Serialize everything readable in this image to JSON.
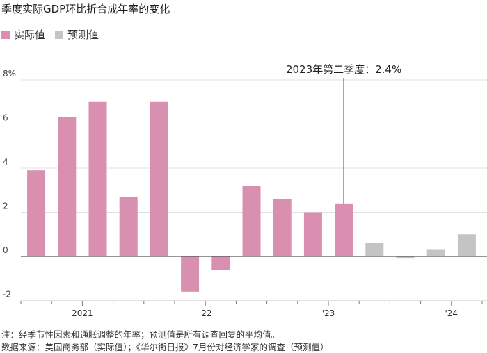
{
  "title": "季度实际GDP环比折合成年率的变化",
  "legend": [
    {
      "label": "实际值",
      "color": "#d98fb0"
    },
    {
      "label": "预测值",
      "color": "#c4c4c4"
    }
  ],
  "chart_data": {
    "type": "bar",
    "title": "季度实际GDP环比折合成年率的变化",
    "y_tick_labels": [
      "8%",
      "6",
      "4",
      "2",
      "0",
      "-2"
    ],
    "ylim": [
      -2.3,
      8.2
    ],
    "grid": true,
    "x_labels": [
      {
        "label": "2021",
        "at": 1.5
      },
      {
        "label": "'22",
        "at": 5.5
      },
      {
        "label": "'23",
        "at": 9.5
      },
      {
        "label": "'24",
        "at": 13.5
      }
    ],
    "series": [
      {
        "name": "实际值",
        "color": "#d98fb0",
        "values": [
          3.9,
          6.3,
          7.0,
          2.7,
          7.0,
          -1.6,
          -0.6,
          3.2,
          2.6,
          2.0,
          2.4,
          null,
          null,
          null,
          null
        ]
      },
      {
        "name": "预测值",
        "color": "#c4c4c4",
        "values": [
          null,
          null,
          null,
          null,
          null,
          null,
          null,
          null,
          null,
          null,
          null,
          0.6,
          -0.1,
          0.3,
          1.0
        ]
      }
    ],
    "annotation": {
      "text": "2023年第二季度：2.4%",
      "index": 10,
      "value": 2.4
    }
  },
  "notes": {
    "line1": "注：经季节性因素和通胀调整的年率；预测值是所有调查回复的平均值。",
    "line2": "数据来源：美国商务部（实际值）；《华尔街日报》7月份对经济学家的调查（预测值）"
  }
}
